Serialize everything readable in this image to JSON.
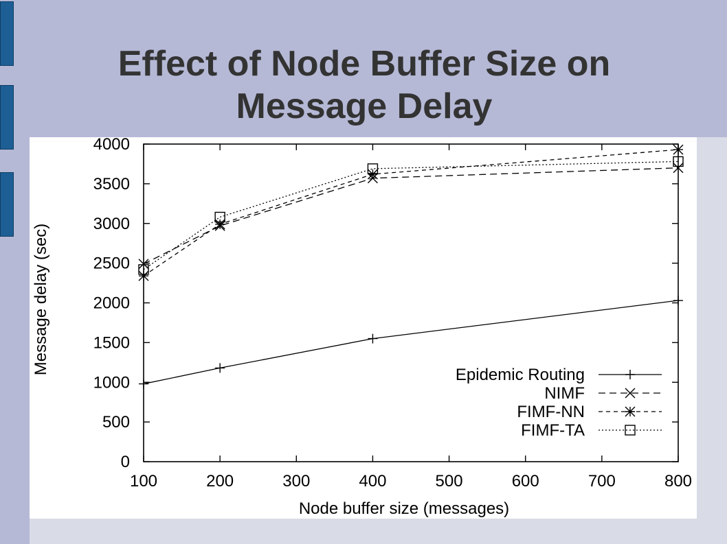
{
  "slide": {
    "title_line1": "Effect of Node Buffer Size on",
    "title_line2": "Message Delay",
    "colors": {
      "header": "#b5b9d6",
      "accent": "#1d5f95",
      "title": "#333333"
    }
  },
  "chart_data": {
    "type": "line",
    "xlabel": "Node buffer size (messages)",
    "ylabel": "Message delay (sec)",
    "xlim": [
      100,
      800
    ],
    "ylim": [
      0,
      4000
    ],
    "xticks": [
      100,
      200,
      300,
      400,
      500,
      600,
      700,
      800
    ],
    "yticks": [
      0,
      500,
      1000,
      1500,
      2000,
      2500,
      3000,
      3500,
      4000
    ],
    "legend_position": "bottom-right",
    "grid": false,
    "series": [
      {
        "name": "Epidemic Routing",
        "marker": "plus",
        "dash": "solid",
        "x": [
          100,
          200,
          400,
          800
        ],
        "y": [
          980,
          1180,
          1550,
          2030
        ]
      },
      {
        "name": "NIMF",
        "marker": "cross",
        "dash": "dashed",
        "x": [
          100,
          200,
          400,
          800
        ],
        "y": [
          2490,
          2970,
          3570,
          3700
        ]
      },
      {
        "name": "FIMF-NN",
        "marker": "star",
        "dash": "dashed-short",
        "x": [
          100,
          200,
          400,
          800
        ],
        "y": [
          2340,
          2990,
          3620,
          3930
        ]
      },
      {
        "name": "FIMF-TA",
        "marker": "square",
        "dash": "dotted",
        "x": [
          100,
          200,
          400,
          800
        ],
        "y": [
          2420,
          3080,
          3690,
          3780
        ]
      }
    ]
  }
}
